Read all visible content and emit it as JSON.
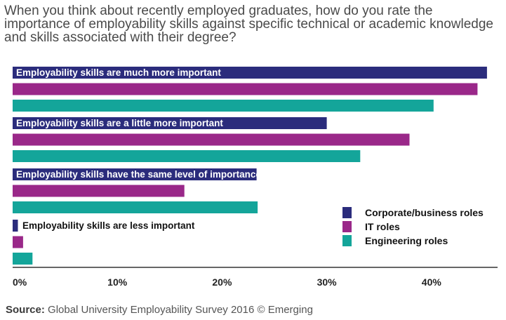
{
  "title": "When you think about recently employed graduates, how do you rate the importance of employability skills against specific technical or academic knowledge and skills associated with their degree?",
  "source": {
    "label": "Source:",
    "text": " Global University Employability Survey 2016 © Emerging"
  },
  "colors": {
    "series": [
      "#2b2c7c",
      "#9a2889",
      "#14a59a"
    ],
    "axis": "#333333"
  },
  "chart_data": {
    "type": "bar",
    "orientation": "horizontal",
    "categories": [
      "Employability skills are much more important",
      "Employability skills are a little more important",
      "Employability skills have the same level of importance",
      "Employability skills are less important"
    ],
    "series": [
      {
        "name": "Corporate/business roles",
        "values": [
          45.3,
          30.0,
          23.3,
          0.5
        ]
      },
      {
        "name": "IT roles",
        "values": [
          44.4,
          37.9,
          16.4,
          1.0
        ]
      },
      {
        "name": "Engineering roles",
        "values": [
          40.2,
          33.2,
          23.4,
          1.9
        ]
      }
    ],
    "xlim": [
      0,
      45
    ],
    "xticks": [
      0,
      10,
      20,
      30,
      40
    ],
    "xtick_labels": [
      "0%",
      "10%",
      "20%",
      "30%",
      "40%"
    ],
    "legend_position": "bottom-right"
  }
}
